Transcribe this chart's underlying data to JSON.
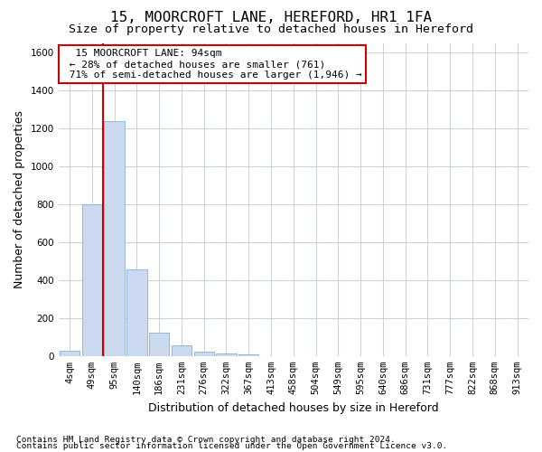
{
  "title": "15, MOORCROFT LANE, HEREFORD, HR1 1FA",
  "subtitle": "Size of property relative to detached houses in Hereford",
  "xlabel": "Distribution of detached houses by size in Hereford",
  "ylabel": "Number of detached properties",
  "footnote1": "Contains HM Land Registry data © Crown copyright and database right 2024.",
  "footnote2": "Contains public sector information licensed under the Open Government Licence v3.0.",
  "bar_labels": [
    "4sqm",
    "49sqm",
    "95sqm",
    "140sqm",
    "186sqm",
    "231sqm",
    "276sqm",
    "322sqm",
    "367sqm",
    "413sqm",
    "458sqm",
    "504sqm",
    "549sqm",
    "595sqm",
    "640sqm",
    "686sqm",
    "731sqm",
    "777sqm",
    "822sqm",
    "868sqm",
    "913sqm"
  ],
  "bar_values": [
    30,
    800,
    1240,
    455,
    125,
    55,
    25,
    15,
    10,
    0,
    0,
    0,
    0,
    0,
    0,
    0,
    0,
    0,
    0,
    0,
    0
  ],
  "bar_color": "#ccdaf0",
  "bar_edgecolor": "#86aed4",
  "ylim": [
    0,
    1650
  ],
  "yticks": [
    0,
    200,
    400,
    600,
    800,
    1000,
    1200,
    1400,
    1600
  ],
  "vline_color": "#cc0000",
  "annotation_text": "  15 MOORCROFT LANE: 94sqm  \n ← 28% of detached houses are smaller (761) \n 71% of semi-detached houses are larger (1,946) →",
  "annotation_box_color": "#ffffff",
  "annotation_box_edgecolor": "#cc0000",
  "background_color": "#ffffff",
  "grid_color": "#c8d0dc",
  "title_fontsize": 11.5,
  "subtitle_fontsize": 9.5,
  "label_fontsize": 9,
  "tick_fontsize": 7.5,
  "footnote_fontsize": 6.8,
  "annotation_fontsize": 8
}
